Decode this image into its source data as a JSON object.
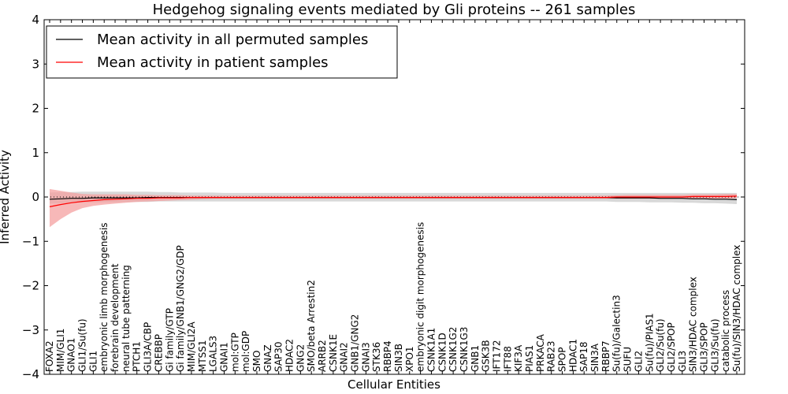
{
  "chart_data": {
    "type": "line",
    "title": "Hedgehog signaling events mediated by Gli proteins -- 261 samples",
    "xlabel": "Cellular Entities",
    "ylabel": "Inferred Activity",
    "ylim": [
      -4,
      4
    ],
    "yticks": [
      -4,
      -3,
      -2,
      -1,
      0,
      1,
      2,
      3,
      4
    ],
    "ytick_labels": [
      "−4",
      "−3",
      "−2",
      "−1",
      "0",
      "1",
      "2",
      "3",
      "4"
    ],
    "legend_position": "top-left",
    "categories": [
      "FOXA2",
      "MIM/GLI1",
      "GNAO1",
      "GLI1/Su(fu)",
      "GLI1",
      "embryonic limb morphogenesis",
      "forebrain development",
      "neural tube patterning",
      "PTCH1",
      "GLI3A/CBP",
      "CREBBP",
      "Gi family/GTP",
      "Gi family/GNB1/GNG2/GDP",
      "MIM/GLI2A",
      "MTSS1",
      "LGALS3",
      "GNAI1",
      "mol:GTP",
      "mol:GDP",
      "SMO",
      "GNAZ",
      "SAP30",
      "HDAC2",
      "GNG2",
      "SMO/beta Arrestin2",
      "ARRB2",
      "CSNK1E",
      "GNAI2",
      "GNB1/GNG2",
      "GNAI3",
      "STK36",
      "RBBP4",
      "SIN3B",
      "XPO1",
      "embryonic digit morphogenesis",
      "CSNK1A1",
      "CSNK1D",
      "CSNK1G2",
      "CSNK1G3",
      "GNB1",
      "GSK3B",
      "IFT172",
      "IFT88",
      "KIF3A",
      "PIAS1",
      "PRKACA",
      "RAB23",
      "SPOP",
      "HDAC1",
      "SAP18",
      "SIN3A",
      "RBBP7",
      "Su(fu)/Galectin3",
      "SUFU",
      "GLI2",
      "Su(fu)/PIAS1",
      "GLI2/Su(fu)",
      "GLI2/SPOP",
      "GLI3",
      "SIN3/HDAC complex",
      "GLI3/SPOP",
      "GLI3/Su(fu)",
      "catabolic process",
      "Su(fu)/SIN3/HDAC complex"
    ],
    "series": [
      {
        "name": "Mean activity in all permuted samples",
        "color": "#000000",
        "band_color": "#c8c8c8",
        "values": [
          -0.05,
          -0.04,
          -0.03,
          -0.03,
          -0.02,
          -0.02,
          -0.02,
          -0.02,
          -0.02,
          -0.01,
          -0.01,
          -0.01,
          -0.01,
          -0.01,
          -0.01,
          -0.01,
          -0.01,
          -0.01,
          -0.01,
          -0.01,
          -0.01,
          -0.01,
          -0.01,
          -0.01,
          -0.01,
          -0.01,
          -0.01,
          -0.01,
          -0.01,
          -0.01,
          -0.01,
          -0.01,
          -0.01,
          -0.01,
          -0.01,
          -0.01,
          -0.01,
          -0.01,
          -0.01,
          -0.01,
          -0.01,
          -0.01,
          -0.01,
          -0.01,
          -0.01,
          -0.01,
          -0.01,
          -0.01,
          -0.01,
          -0.01,
          -0.01,
          -0.01,
          -0.02,
          -0.02,
          -0.02,
          -0.02,
          -0.03,
          -0.03,
          -0.03,
          -0.04,
          -0.04,
          -0.05,
          -0.05,
          -0.06
        ],
        "lower": [
          -0.15,
          -0.14,
          -0.13,
          -0.13,
          -0.12,
          -0.12,
          -0.12,
          -0.11,
          -0.11,
          -0.11,
          -0.1,
          -0.1,
          -0.1,
          -0.1,
          -0.1,
          -0.1,
          -0.1,
          -0.1,
          -0.1,
          -0.1,
          -0.1,
          -0.1,
          -0.1,
          -0.1,
          -0.1,
          -0.1,
          -0.1,
          -0.1,
          -0.1,
          -0.1,
          -0.1,
          -0.1,
          -0.1,
          -0.1,
          -0.1,
          -0.1,
          -0.1,
          -0.1,
          -0.1,
          -0.1,
          -0.1,
          -0.1,
          -0.1,
          -0.1,
          -0.1,
          -0.1,
          -0.1,
          -0.1,
          -0.1,
          -0.1,
          -0.1,
          -0.1,
          -0.11,
          -0.11,
          -0.11,
          -0.12,
          -0.12,
          -0.12,
          -0.13,
          -0.13,
          -0.14,
          -0.14,
          -0.15,
          -0.16
        ],
        "upper": [
          0.1,
          0.11,
          0.11,
          0.12,
          0.12,
          0.12,
          0.12,
          0.12,
          0.12,
          0.12,
          0.11,
          0.11,
          0.1,
          0.1,
          0.1,
          0.1,
          0.09,
          0.09,
          0.09,
          0.09,
          0.09,
          0.09,
          0.09,
          0.09,
          0.09,
          0.09,
          0.09,
          0.09,
          0.09,
          0.09,
          0.09,
          0.09,
          0.09,
          0.09,
          0.09,
          0.09,
          0.09,
          0.09,
          0.09,
          0.09,
          0.09,
          0.09,
          0.09,
          0.09,
          0.09,
          0.09,
          0.09,
          0.09,
          0.09,
          0.09,
          0.09,
          0.09,
          0.09,
          0.09,
          0.09,
          0.09,
          0.09,
          0.09,
          0.09,
          0.09,
          0.09,
          0.09,
          0.09,
          0.09
        ]
      },
      {
        "name": "Mean activity in patient samples",
        "color": "#ff0000",
        "band_color": "#f4a0a0",
        "values": [
          -0.22,
          -0.17,
          -0.13,
          -0.1,
          -0.08,
          -0.06,
          -0.05,
          -0.04,
          -0.03,
          -0.03,
          -0.02,
          -0.02,
          -0.02,
          -0.01,
          -0.01,
          -0.01,
          -0.01,
          -0.01,
          -0.01,
          -0.01,
          -0.01,
          -0.01,
          -0.01,
          -0.01,
          -0.01,
          -0.01,
          -0.01,
          -0.01,
          -0.01,
          -0.01,
          -0.01,
          -0.01,
          -0.01,
          -0.01,
          -0.01,
          -0.01,
          -0.01,
          -0.01,
          -0.01,
          -0.01,
          -0.01,
          -0.01,
          -0.01,
          -0.01,
          -0.01,
          -0.01,
          -0.01,
          -0.01,
          -0.01,
          -0.01,
          -0.01,
          -0.01,
          0,
          0,
          0,
          0,
          0,
          0,
          0,
          0.01,
          0.01,
          0.01,
          0.01,
          0.02
        ],
        "lower": [
          -0.68,
          -0.5,
          -0.35,
          -0.25,
          -0.2,
          -0.17,
          -0.15,
          -0.13,
          -0.11,
          -0.1,
          -0.09,
          -0.08,
          -0.07,
          -0.06,
          -0.05,
          -0.04,
          -0.04,
          -0.04,
          -0.04,
          -0.04,
          -0.04,
          -0.04,
          -0.04,
          -0.04,
          -0.04,
          -0.04,
          -0.04,
          -0.04,
          -0.04,
          -0.04,
          -0.04,
          -0.04,
          -0.04,
          -0.04,
          -0.04,
          -0.04,
          -0.04,
          -0.04,
          -0.04,
          -0.04,
          -0.04,
          -0.04,
          -0.04,
          -0.04,
          -0.04,
          -0.04,
          -0.04,
          -0.04,
          -0.04,
          -0.04,
          -0.04,
          -0.04,
          -0.04,
          -0.04,
          -0.04,
          -0.04,
          -0.04,
          -0.04,
          -0.04,
          -0.04,
          -0.04,
          -0.04,
          -0.04,
          -0.03
        ],
        "upper": [
          0.18,
          0.14,
          0.1,
          0.07,
          0.06,
          0.06,
          0.06,
          0.06,
          0.05,
          0.05,
          0.04,
          0.04,
          0.04,
          0.03,
          0.03,
          0.03,
          0.03,
          0.03,
          0.03,
          0.03,
          0.03,
          0.03,
          0.03,
          0.03,
          0.03,
          0.03,
          0.03,
          0.03,
          0.03,
          0.03,
          0.03,
          0.03,
          0.03,
          0.03,
          0.03,
          0.03,
          0.03,
          0.03,
          0.03,
          0.03,
          0.03,
          0.03,
          0.03,
          0.03,
          0.03,
          0.03,
          0.03,
          0.03,
          0.03,
          0.03,
          0.03,
          0.03,
          0.04,
          0.05,
          0.05,
          0.05,
          0.05,
          0.05,
          0.05,
          0.06,
          0.06,
          0.06,
          0.07,
          0.07
        ]
      }
    ]
  }
}
